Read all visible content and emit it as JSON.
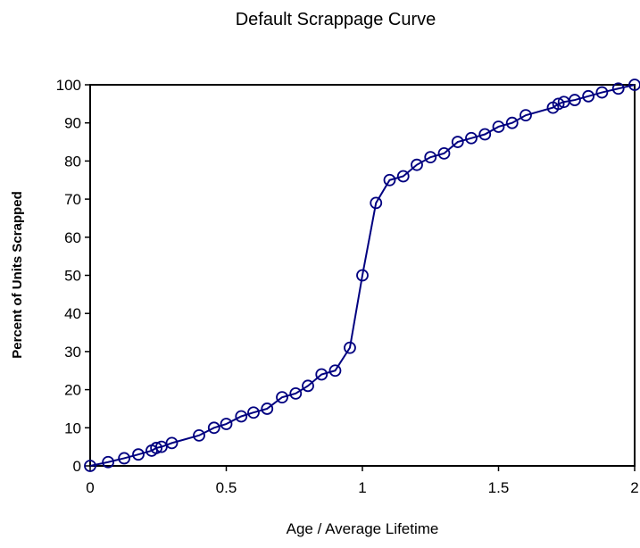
{
  "chart_data": {
    "type": "line",
    "title": "Default Scrappage Curve",
    "x_label": "Age / Average Lifetime",
    "y_label": "Percent of Units Scrapped",
    "color": "#000080",
    "marker": "circle",
    "x": [
      0,
      0.066,
      0.125,
      0.177,
      0.226,
      0.243,
      0.262,
      0.3,
      0.4,
      0.455,
      0.5,
      0.555,
      0.6,
      0.65,
      0.705,
      0.755,
      0.8,
      0.85,
      0.9,
      0.954,
      1.0,
      1.05,
      1.1,
      1.15,
      1.2,
      1.25,
      1.3,
      1.35,
      1.4,
      1.45,
      1.5,
      1.55,
      1.6,
      1.7,
      1.72,
      1.74,
      1.78,
      1.83,
      1.88,
      1.94,
      2
    ],
    "values": [
      0,
      1,
      2,
      3,
      4,
      4.7,
      5,
      6,
      8,
      10,
      11,
      13,
      14,
      15,
      18,
      19,
      21,
      24,
      25,
      31,
      50,
      69,
      75,
      76,
      79,
      81,
      82,
      85,
      86,
      87,
      89,
      90,
      92,
      94,
      95,
      95.5,
      96,
      97,
      98,
      99,
      100
    ],
    "xlim": [
      0,
      2
    ],
    "xticks": [
      0,
      0.5,
      1,
      1.5,
      2
    ],
    "ylim": [
      0,
      100
    ],
    "yticks": [
      0,
      10,
      20,
      30,
      40,
      50,
      60,
      70,
      80,
      90,
      100
    ]
  }
}
